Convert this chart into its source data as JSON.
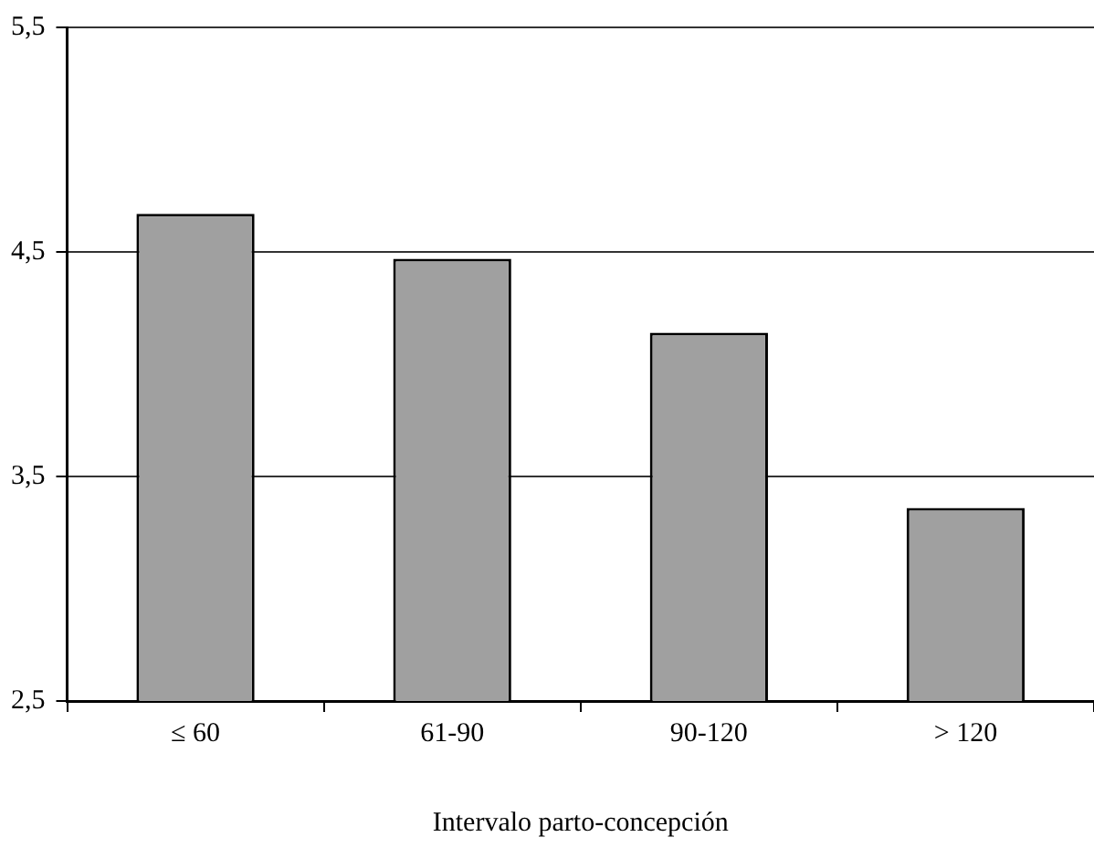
{
  "chart_data": {
    "type": "bar",
    "xlabel": "Intervalo parto-concepción",
    "categories": [
      "≤ 60",
      "61-90",
      "90-120",
      "> 120"
    ],
    "values": [
      4.67,
      4.47,
      4.14,
      3.36
    ],
    "color": "#a0a0a0",
    "ylim": [
      2.5,
      5.5
    ],
    "yticks": [
      {
        "value": 2.5,
        "label": "2,5"
      },
      {
        "value": 3.5,
        "label": "3,5"
      },
      {
        "value": 4.5,
        "label": "4,5"
      },
      {
        "value": 5.5,
        "label": "5,5"
      }
    ],
    "grid": "y",
    "legend": false
  }
}
